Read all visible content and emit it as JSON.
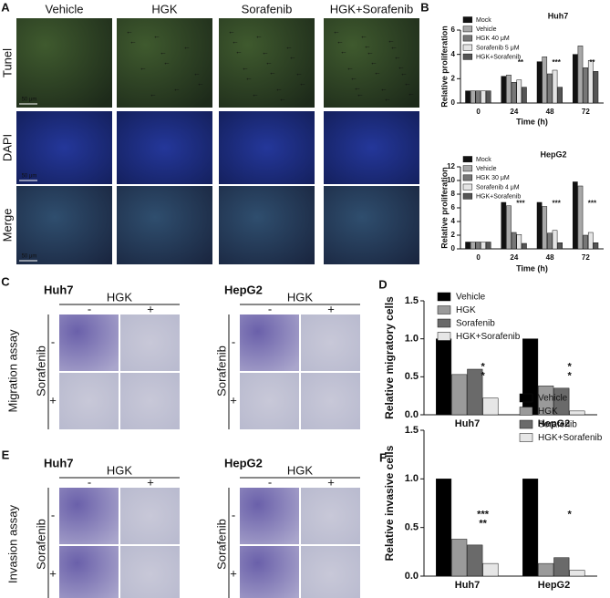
{
  "panels": {
    "A": {
      "letter": "A",
      "columns": [
        "Vehicle",
        "HGK",
        "Sorafenib",
        "HGK+Sorafenib"
      ],
      "rows": [
        "Tunel",
        "DAPI",
        "Merge"
      ],
      "scale_bar": "50 μm"
    },
    "B": {
      "letter": "B"
    },
    "C": {
      "letter": "C",
      "cell_lines": [
        "Huh7",
        "HepG2"
      ],
      "treatment": "HGK",
      "signs": [
        "-",
        "+"
      ],
      "drug": "Sorafenib",
      "assay": "Migration assay"
    },
    "D": {
      "letter": "D"
    },
    "E": {
      "letter": "E",
      "cell_lines": [
        "Huh7",
        "HepG2"
      ],
      "treatment": "HGK",
      "signs": [
        "-",
        "+"
      ],
      "drug": "Sorafenib",
      "assay": "Invasion assay"
    },
    "F": {
      "letter": "F"
    }
  },
  "chart_data": [
    {
      "type": "bar",
      "title": "Huh7",
      "xlabel": "Time (h)",
      "ylabel": "Relative  proliferation",
      "categories": [
        "0",
        "24",
        "48",
        "72"
      ],
      "ylim": [
        0,
        6
      ],
      "yticks": [
        0,
        2,
        4,
        6
      ],
      "series": [
        {
          "name": "Mock",
          "color": "#111111",
          "values": [
            1,
            2.2,
            3.4,
            4.0
          ]
        },
        {
          "name": "Vehicle",
          "color": "#a8a8a8",
          "values": [
            1,
            2.3,
            3.8,
            4.7
          ]
        },
        {
          "name": "HGK 40 μM",
          "color": "#777777",
          "values": [
            1,
            1.7,
            2.4,
            2.9
          ]
        },
        {
          "name": "Sorafenib 5 μM",
          "color": "#e4e4e4",
          "values": [
            1,
            1.9,
            2.7,
            3.5
          ]
        },
        {
          "name": "HGK+Sorafenib",
          "color": "#555555",
          "values": [
            1,
            1.3,
            1.3,
            2.6
          ]
        }
      ],
      "annotations": [
        "**",
        "***",
        "**"
      ]
    },
    {
      "type": "bar",
      "title": "HepG2",
      "xlabel": "Time (h)",
      "ylabel": "Relative  proliferation",
      "categories": [
        "0",
        "24",
        "48",
        "72"
      ],
      "ylim": [
        0,
        12
      ],
      "yticks": [
        0,
        2,
        4,
        6,
        8,
        10,
        12
      ],
      "series": [
        {
          "name": "Mock",
          "color": "#111111",
          "values": [
            1,
            6.8,
            6.8,
            9.8
          ]
        },
        {
          "name": "Vehicle",
          "color": "#a8a8a8",
          "values": [
            1,
            6.3,
            6.2,
            9.2
          ]
        },
        {
          "name": "HGK 30 μM",
          "color": "#777777",
          "values": [
            1,
            2.4,
            2.3,
            2.0
          ]
        },
        {
          "name": "Sorafenib 4 μM",
          "color": "#e4e4e4",
          "values": [
            1,
            2.1,
            2.7,
            2.4
          ]
        },
        {
          "name": "HGK+Sorafenib",
          "color": "#555555",
          "values": [
            1,
            0.8,
            0.9,
            0.9
          ]
        }
      ],
      "annotations": [
        "***",
        "***",
        "***"
      ]
    },
    {
      "type": "bar",
      "ylabel": "Relative  migratory cells",
      "categories": [
        "Huh7",
        "HepG2"
      ],
      "ylim": [
        0,
        1.5
      ],
      "yticks": [
        {
          "value": 0,
          "label": "0.0"
        },
        {
          "value": 0.5,
          "label": "0.5"
        },
        {
          "value": 1,
          "label": "1.0"
        },
        {
          "value": 1.5,
          "label": "1.5"
        }
      ],
      "series": [
        {
          "name": "Vehicle",
          "color": "#000000",
          "values": [
            1.0,
            1.0
          ]
        },
        {
          "name": "HGK",
          "color": "#9a9a9a",
          "values": [
            0.53,
            0.38
          ]
        },
        {
          "name": "Sorafenib",
          "color": "#6a6a6a",
          "values": [
            0.6,
            0.35
          ]
        },
        {
          "name": "HGK+Sorafenib",
          "color": "#e6e6e6",
          "values": [
            0.22,
            0.05
          ]
        }
      ],
      "annotations": [
        "*",
        "*",
        "*",
        "*"
      ]
    },
    {
      "type": "bar",
      "ylabel": "Relative  invasive cells",
      "categories": [
        "Huh7",
        "HepG2"
      ],
      "ylim": [
        0,
        1.5
      ],
      "yticks": [
        {
          "value": 0,
          "label": "0.0"
        },
        {
          "value": 0.5,
          "label": "0.5"
        },
        {
          "value": 1,
          "label": "1.0"
        },
        {
          "value": 1.5,
          "label": "1.5"
        }
      ],
      "series": [
        {
          "name": "Vehicle",
          "color": "#000000",
          "values": [
            1.0,
            1.0
          ]
        },
        {
          "name": "HGK",
          "color": "#9a9a9a",
          "values": [
            0.38,
            0.13
          ]
        },
        {
          "name": "Sorafenib",
          "color": "#6a6a6a",
          "values": [
            0.32,
            0.19
          ]
        },
        {
          "name": "HGK+Sorafenib",
          "color": "#e6e6e6",
          "values": [
            0.13,
            0.06
          ]
        }
      ],
      "annotations": [
        "***",
        "**",
        "*"
      ]
    }
  ]
}
